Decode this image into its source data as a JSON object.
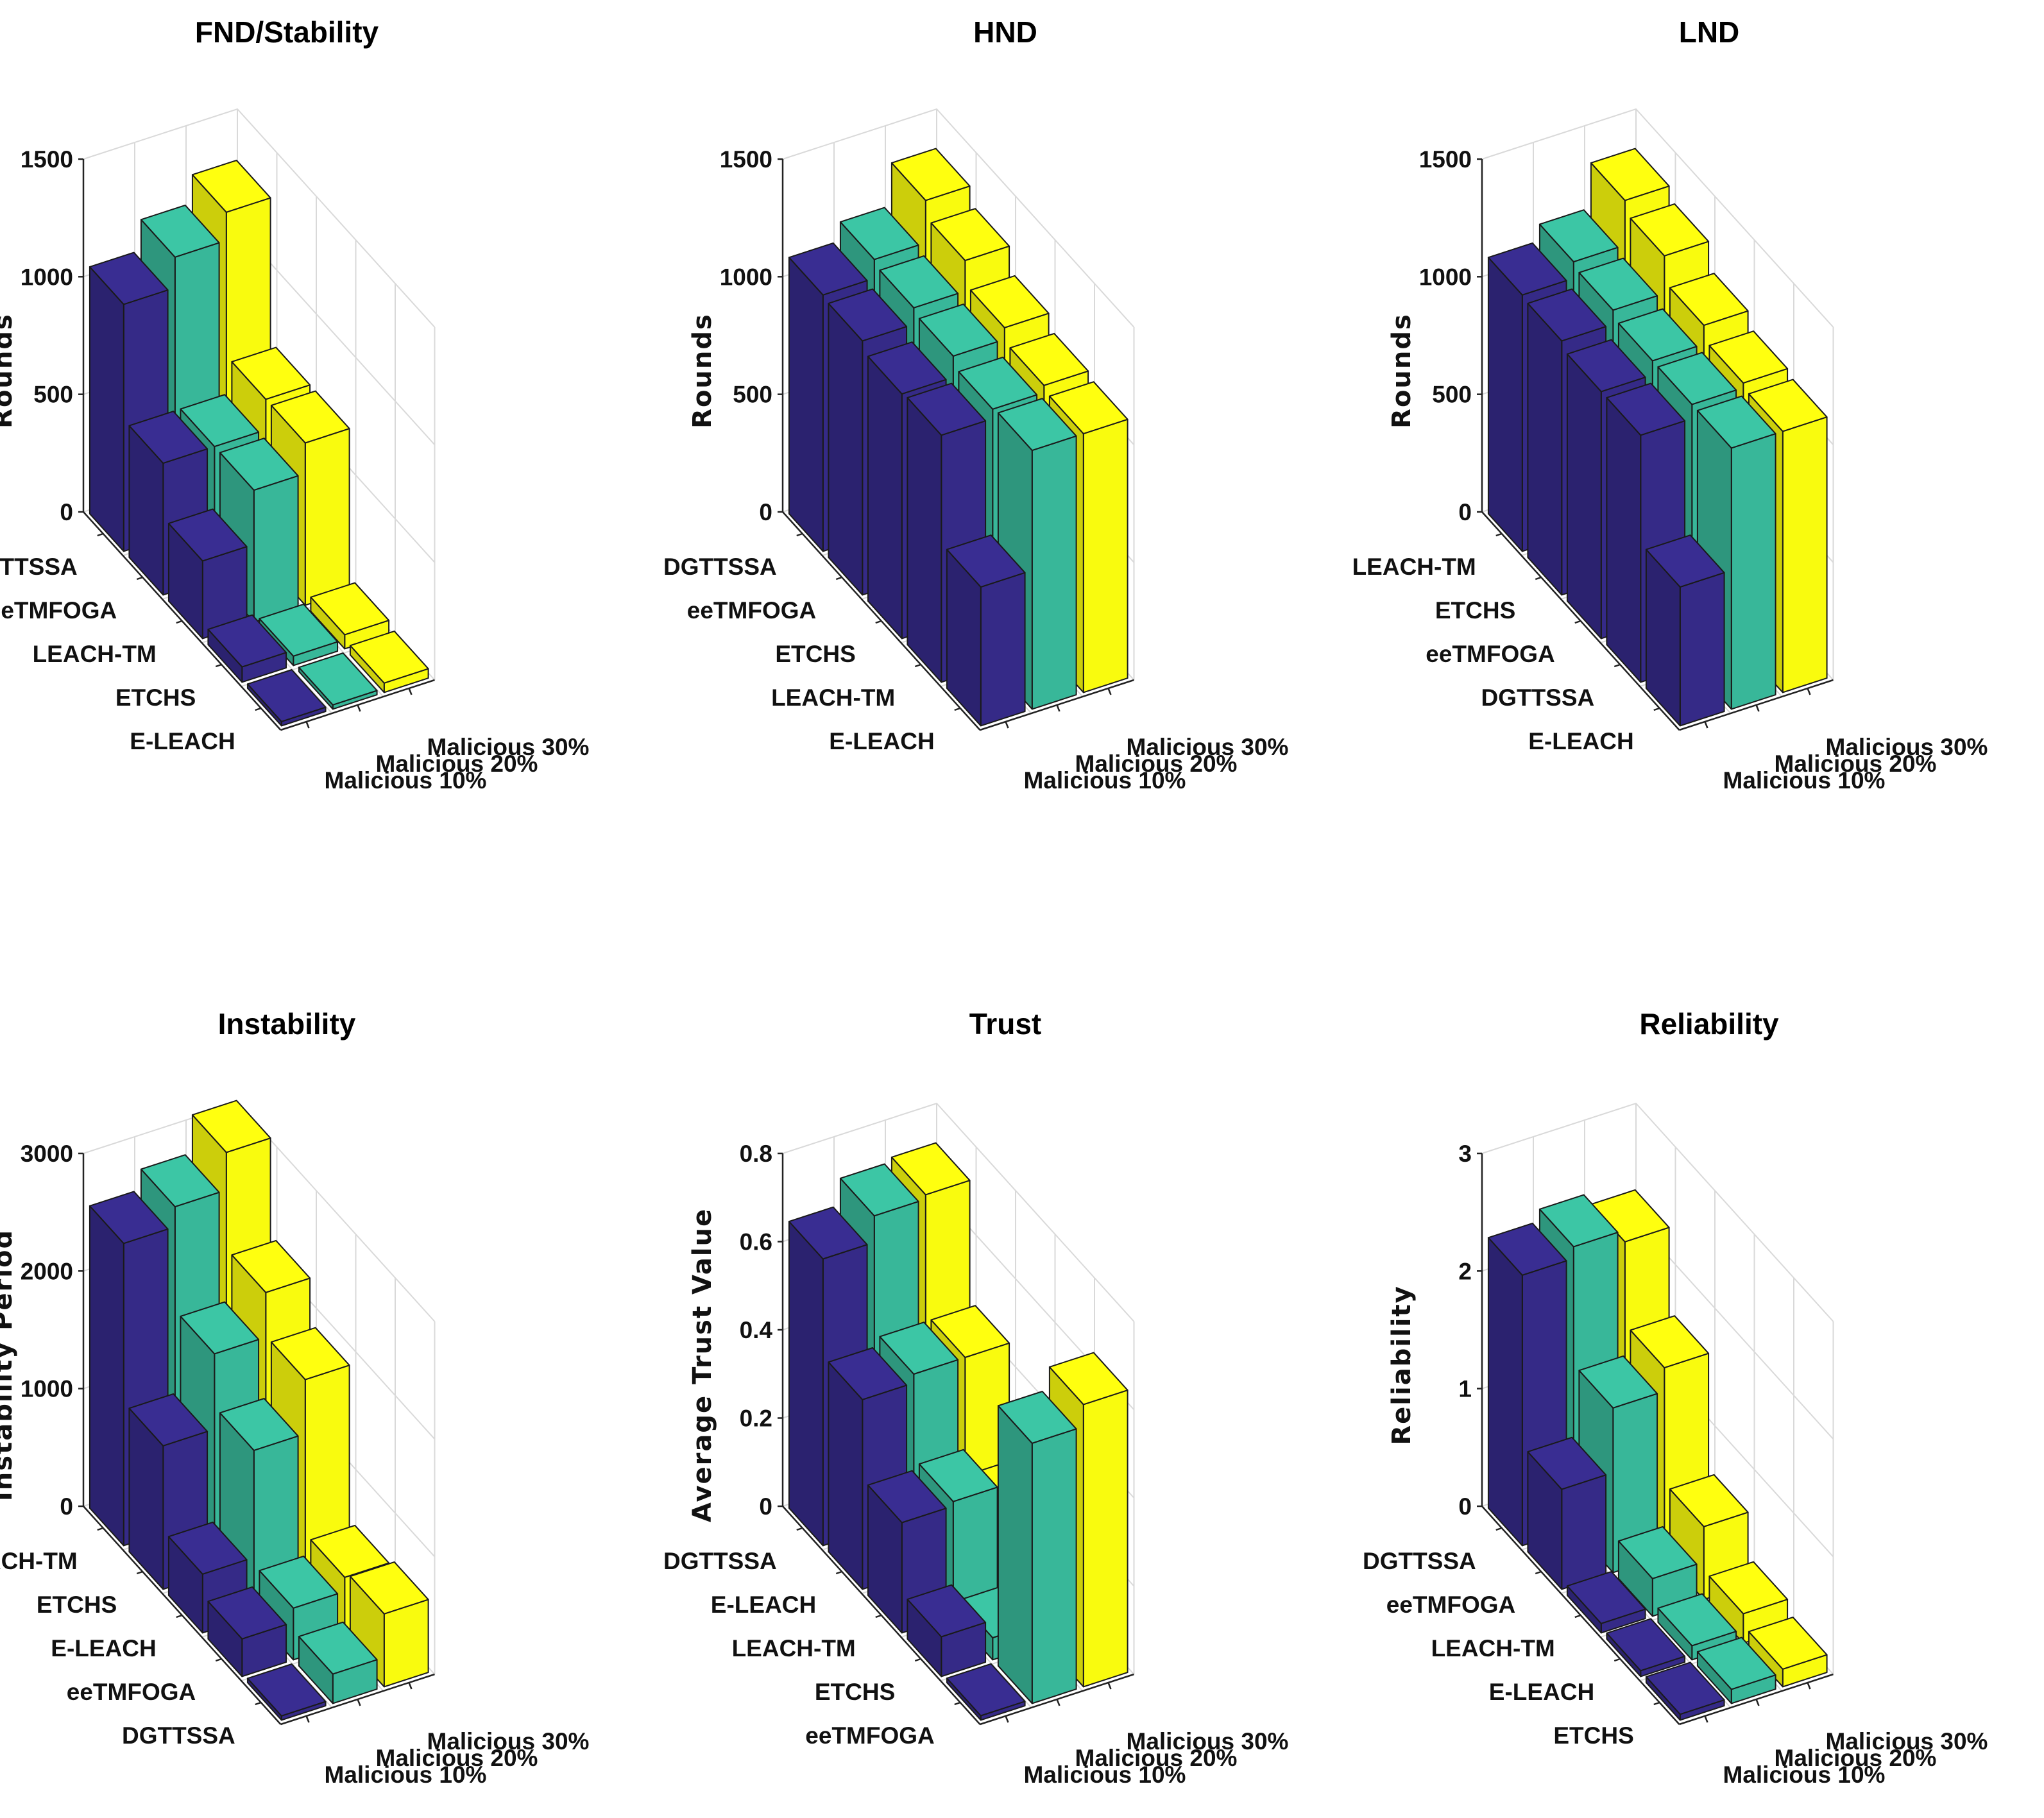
{
  "colors": {
    "series": [
      "#352a87",
      "#38b799",
      "#f9fb0e"
    ]
  },
  "series": [
    "Malicious 10%",
    "Malicious 20%",
    "Malicious 30%"
  ],
  "chart_data": [
    {
      "type": "bar3d",
      "title": "FND/Stability",
      "zlabel": "Rounds",
      "zlim": [
        0,
        1500
      ],
      "zticks": [
        "0",
        "500",
        "1000",
        "1500"
      ],
      "categories": [
        "DGTTSSA",
        "eeTMFOGA",
        "LEACH-TM",
        "ETCHS",
        "E-LEACH"
      ],
      "series": [
        {
          "name": "Malicious 10%",
          "values": [
            1050,
            560,
            330,
            65,
            0
          ]
        },
        {
          "name": "Malicious 20%",
          "values": [
            1180,
            560,
            560,
            40,
            0
          ]
        },
        {
          "name": "Malicious 30%",
          "values": [
            1300,
            690,
            690,
            60,
            40
          ]
        }
      ]
    },
    {
      "type": "bar3d",
      "title": "HND",
      "zlabel": "Rounds",
      "zlim": [
        0,
        1500
      ],
      "zticks": [
        "0",
        "500",
        "1000",
        "1500"
      ],
      "categories": [
        "DGTTSSA",
        "eeTMFOGA",
        "ETCHS",
        "LEACH-TM",
        "E-LEACH"
      ],
      "series": [
        {
          "name": "Malicious 10%",
          "values": [
            1090,
            1080,
            1040,
            1050,
            590
          ]
        },
        {
          "name": "Malicious 20%",
          "values": [
            1170,
            1150,
            1130,
            1090,
            1100
          ]
        },
        {
          "name": "Malicious 30%",
          "values": [
            1350,
            1280,
            1180,
            1120,
            1100
          ]
        }
      ]
    },
    {
      "type": "bar3d",
      "title": "LND",
      "zlabel": "Rounds",
      "zlim": [
        0,
        1500
      ],
      "zticks": [
        "0",
        "500",
        "1000",
        "1500"
      ],
      "categories": [
        "LEACH-TM",
        "ETCHS",
        "eeTMFOGA",
        "DGTTSSA",
        "E-LEACH"
      ],
      "series": [
        {
          "name": "Malicious 10%",
          "values": [
            1090,
            1080,
            1050,
            1050,
            590
          ]
        },
        {
          "name": "Malicious 20%",
          "values": [
            1160,
            1140,
            1110,
            1110,
            1110
          ]
        },
        {
          "name": "Malicious 30%",
          "values": [
            1350,
            1300,
            1190,
            1130,
            1110
          ]
        }
      ]
    },
    {
      "type": "bar3d",
      "title": "Instability",
      "zlabel": "Instability Period",
      "zlim": [
        0,
        3000
      ],
      "zticks": [
        "0",
        "1000",
        "2000",
        "3000"
      ],
      "categories": [
        "LEACH-TM",
        "ETCHS",
        "E-LEACH",
        "eeTMFOGA",
        "DGTTSSA"
      ],
      "series": [
        {
          "name": "Malicious 10%",
          "values": [
            2570,
            1220,
            500,
            320,
            0
          ]
        },
        {
          "name": "Malicious 20%",
          "values": [
            2740,
            1860,
            1410,
            440,
            250
          ]
        },
        {
          "name": "Malicious 30%",
          "values": [
            3060,
            2240,
            1870,
            560,
            620
          ]
        }
      ]
    },
    {
      "type": "bar3d",
      "title": "Trust",
      "zlabel": "Average Trust Value",
      "zlim": [
        0,
        0.8
      ],
      "zticks": [
        "0",
        "0.2",
        "0.4",
        "0.6",
        "0.8"
      ],
      "categories": [
        "DGTTSSA",
        "E-LEACH",
        "LEACH-TM",
        "ETCHS",
        "eeTMFOGA"
      ],
      "series": [
        {
          "name": "Malicious 10%",
          "values": [
            0.65,
            0.43,
            0.25,
            0.09,
            0.01
          ]
        },
        {
          "name": "Malicious 20%",
          "values": [
            0.71,
            0.45,
            0.26,
            0.05,
            0.59
          ]
        },
        {
          "name": "Malicious 30%",
          "values": [
            0.72,
            0.45,
            0.2,
            0.07,
            0.64
          ]
        }
      ]
    },
    {
      "type": "bar3d",
      "title": "Reliability",
      "zlabel": "Reliability",
      "zlim": [
        0,
        3
      ],
      "zticks": [
        "0",
        "1",
        "2",
        "3"
      ],
      "categories": [
        "DGTTSSA",
        "eeTMFOGA",
        "LEACH-TM",
        "E-LEACH",
        "ETCHS"
      ],
      "series": [
        {
          "name": "Malicious 10%",
          "values": [
            2.3,
            0.85,
            0.08,
            0.05,
            0.05
          ]
        },
        {
          "name": "Malicious 20%",
          "values": [
            2.4,
            1.4,
            0.32,
            0.12,
            0.12
          ]
        },
        {
          "name": "Malicious 30%",
          "values": [
            2.3,
            1.6,
            0.62,
            0.25,
            0.15
          ]
        }
      ]
    }
  ]
}
